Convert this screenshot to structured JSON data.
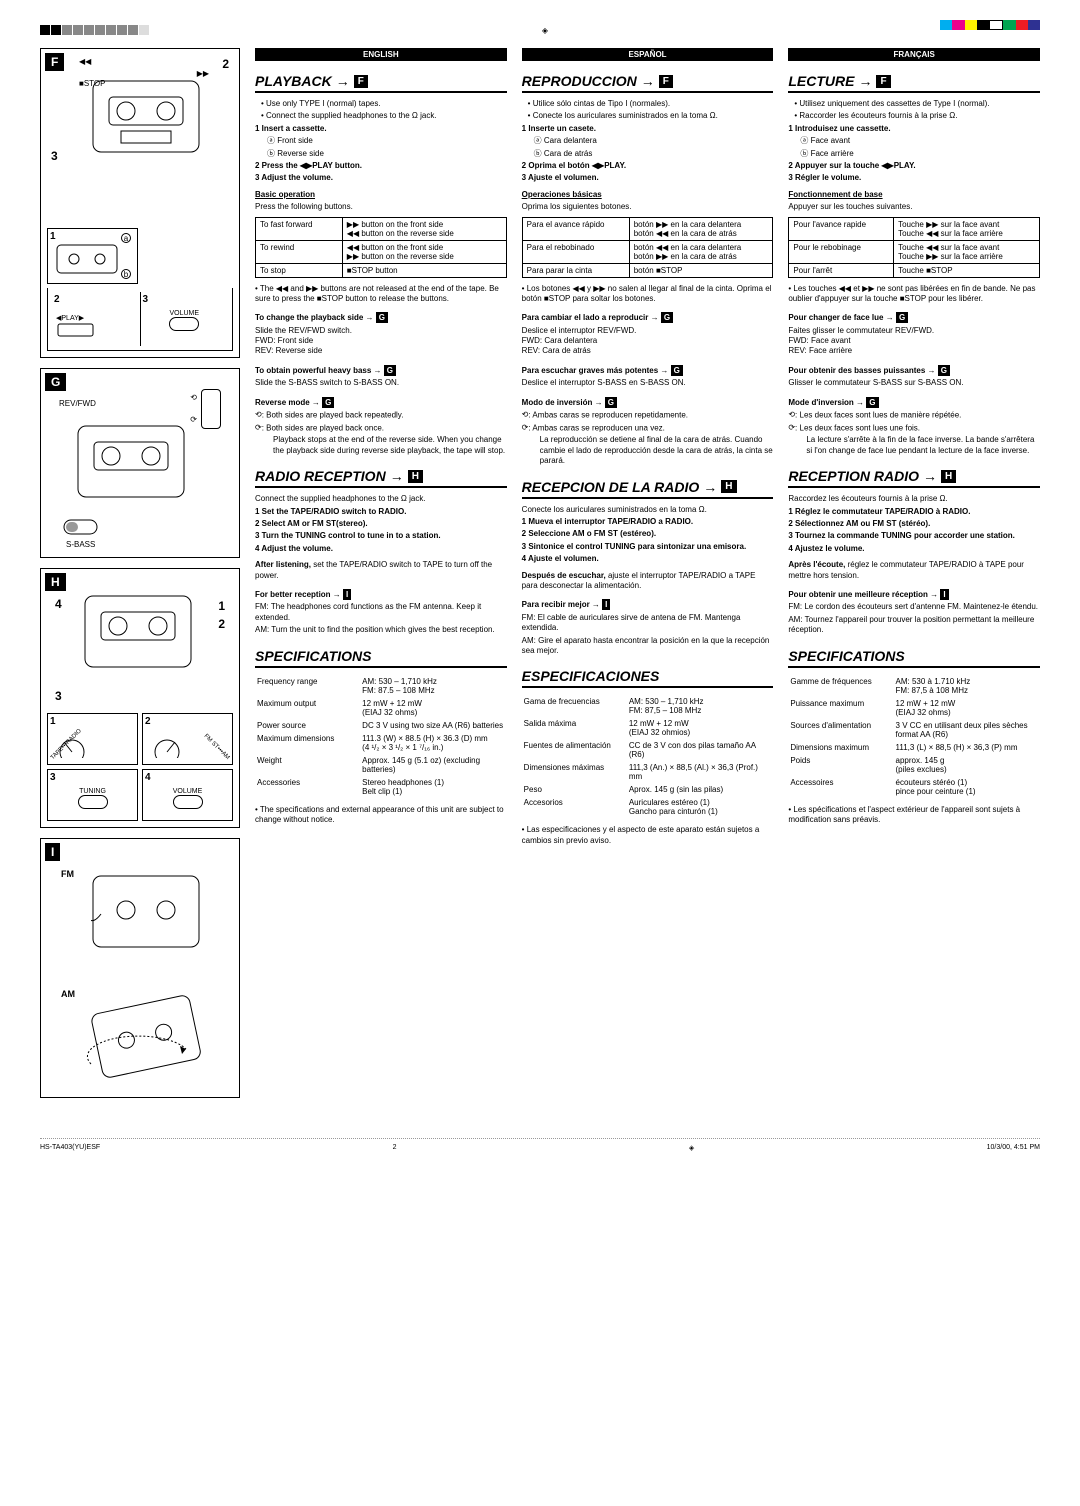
{
  "colorbar": [
    "#00aeef",
    "#ec008c",
    "#fff200",
    "#000000",
    "#ffffff",
    "#00a651",
    "#ed1c24",
    "#2e3192"
  ],
  "langs": {
    "en": "ENGLISH",
    "es": "ESPAÑOL",
    "fr": "FRANÇAIS"
  },
  "en": {
    "playback_title": "PLAYBACK",
    "playback_bullets": [
      "Use only TYPE I (normal) tapes.",
      "Connect the supplied headphones to the Ω jack."
    ],
    "playback_steps": [
      "1 Insert a cassette.",
      "ⓐ Front side",
      "ⓑ Reverse side",
      "2 Press the ◀▶PLAY button.",
      "3 Adjust the volume."
    ],
    "basic_op": "Basic operation",
    "basic_op_sub": "Press the following buttons.",
    "ops": [
      [
        "To fast forward",
        "▶▶ button on the front side\n◀◀ button on the reverse side"
      ],
      [
        "To rewind",
        "◀◀ button on the front side\n▶▶ button on the reverse side"
      ],
      [
        "To stop",
        "■STOP button"
      ]
    ],
    "playback_note": "The ◀◀ and ▶▶ buttons are not released at the end of the tape. Be sure to press the ■STOP button to release the buttons.",
    "change_side": "To change the playback side →",
    "change_side_text": "Slide the REV/FWD switch.\nFWD: Front side\nREV: Reverse side",
    "heavy_bass": "To obtain powerful heavy bass →",
    "heavy_bass_text": "Slide the S-BASS switch to S-BASS ON.",
    "reverse_mode": "Reverse mode →",
    "reverse_item1": "Both sides are played back repeatedly.",
    "reverse_item2": "Both sides are played back once.\nPlayback stops at the end of the reverse side. When you change the playback side during reverse side playback, the tape will stop.",
    "radio_title": "RADIO RECEPTION",
    "radio_intro": "Connect the supplied headphones to the Ω jack.",
    "radio_steps": [
      "1 Set the TAPE/RADIO switch to RADIO.",
      "2 Select AM or FM ST(stereo).",
      "3 Turn the TUNING control to tune in to a station.",
      "4 Adjust the volume."
    ],
    "radio_after": "After listening, set the TAPE/RADIO switch to TAPE to turn off the power.",
    "better_recep": "For better reception →",
    "better_recep_fm": "FM: The headphones cord functions as the FM antenna. Keep it extended.",
    "better_recep_am": "AM: Turn the unit to find the position which gives the best reception.",
    "specs_title": "SPECIFICATIONS",
    "specs": [
      [
        "Frequency range",
        "AM: 530 – 1,710 kHz\nFM: 87.5 – 108 MHz"
      ],
      [
        "Maximum output",
        "12 mW + 12 mW\n(EIAJ 32 ohms)"
      ],
      [
        "Power source",
        "DC 3 V using two size AA (R6) batteries"
      ],
      [
        "Maximum dimensions",
        "111.3 (W) × 88.5 (H) × 36.3 (D) mm\n(4 ¹/₂ × 3 ¹/₂ × 1 ⁷/₁₆ in.)"
      ],
      [
        "Weight",
        "Approx. 145 g (5.1 oz) (excluding batteries)"
      ],
      [
        "Accessories",
        "Stereo headphones (1)\nBelt clip (1)"
      ]
    ],
    "specs_note": "The specifications and external appearance of this unit are subject to change without notice."
  },
  "es": {
    "playback_title": "REPRODUCCION",
    "playback_bullets": [
      "Utilice sólo cintas de Tipo I (normales).",
      "Conecte los auriculares suministrados en la toma Ω."
    ],
    "playback_steps": [
      "1 Inserte un casete.",
      "ⓐ Cara delantera",
      "ⓑ Cara de atrás",
      "2 Oprima el botón ◀▶PLAY.",
      "3 Ajuste el volumen."
    ],
    "basic_op": "Operaciones básicas",
    "basic_op_sub": "Oprima los siguientes botones.",
    "ops": [
      [
        "Para el avance rápido",
        "botón ▶▶ en la cara delantera\nbotón ◀◀ en la cara de atrás"
      ],
      [
        "Para el rebobinado",
        "botón ◀◀ en la cara delantera\nbotón ▶▶ en la cara de atrás"
      ],
      [
        "Para parar la cinta",
        "botón ■STOP"
      ]
    ],
    "playback_note": "Los botones ◀◀ y ▶▶ no salen al llegar al final de la cinta. Oprima el botón ■STOP para soltar los botones.",
    "change_side": "Para cambiar el lado a reproducir →",
    "change_side_text": "Deslice el interruptor REV/FWD.\nFWD: Cara delantera\nREV: Cara de atrás",
    "heavy_bass": "Para escuchar graves más potentes →",
    "heavy_bass_text": "Deslice el interruptor S-BASS en S-BASS ON.",
    "reverse_mode": "Modo de inversión →",
    "reverse_item1": "Ambas caras se reproducen repetidamente.",
    "reverse_item2": "Ambas caras se reproducen una vez.\nLa reproducción se detiene al final de la cara de atrás. Cuando cambie el lado de reproducción desde la cara de atrás, la cinta se parará.",
    "radio_title": "RECEPCION DE LA RADIO",
    "radio_intro": "Conecte los auriculares suministrados en la toma Ω.",
    "radio_steps": [
      "1 Mueva el interruptor TAPE/RADIO a RADIO.",
      "2 Seleccione AM o FM ST (estéreo).",
      "3 Sintonice el control TUNING para sintonizar una emisora.",
      "4 Ajuste el volumen."
    ],
    "radio_after": "Después de escuchar, ajuste el interruptor TAPE/RADIO a TAPE para desconectar la alimentación.",
    "better_recep": "Para recibir mejor →",
    "better_recep_fm": "FM: El cable de auriculares sirve de antena de FM. Mantenga extendida.",
    "better_recep_am": "AM: Gire el aparato hasta encontrar la posición en la que la recepción sea mejor.",
    "specs_title": "ESPECIFICACIONES",
    "specs": [
      [
        "Gama de frecuencias",
        "AM: 530 – 1,710 kHz\nFM: 87,5 – 108 MHz"
      ],
      [
        "Salida máxima",
        "12 mW + 12 mW\n(EIAJ 32 ohmios)"
      ],
      [
        "Fuentes de alimentación",
        "CC de 3 V con dos pilas tamaño AA (R6)"
      ],
      [
        "Dimensiones máximas",
        "111,3 (An.) × 88,5 (Al.) × 36,3 (Prof.) mm"
      ],
      [
        "Peso",
        "Aprox. 145 g (sin las pilas)"
      ],
      [
        "Accesorios",
        "Auriculares estéreo (1)\nGancho para cinturón (1)"
      ]
    ],
    "specs_note": "Las especificaciones y el aspecto de este aparato están sujetos a cambios sin previo aviso."
  },
  "fr": {
    "playback_title": "LECTURE",
    "playback_bullets": [
      "Utilisez uniquement des cassettes de Type I (normal).",
      "Raccorder les écouteurs fournis à la prise Ω."
    ],
    "playback_steps": [
      "1 Introduisez une cassette.",
      "ⓐ Face avant",
      "ⓑ Face arrière",
      "2 Appuyer sur la touche ◀▶PLAY.",
      "3 Régler le volume."
    ],
    "basic_op": "Fonctionnement de base",
    "basic_op_sub": "Appuyer sur les touches suivantes.",
    "ops": [
      [
        "Pour l'avance rapide",
        "Touche ▶▶ sur la face avant\nTouche ◀◀ sur la face arrière"
      ],
      [
        "Pour le rebobinage",
        "Touche ◀◀ sur la face avant\nTouche ▶▶ sur la face arrière"
      ],
      [
        "Pour l'arrêt",
        "Touche ■STOP"
      ]
    ],
    "playback_note": "Les touches ◀◀ et ▶▶ ne sont pas libérées en fin de bande. Ne pas oublier d'appuyer sur la touche ■STOP pour les libérer.",
    "change_side": "Pour changer de face lue →",
    "change_side_text": "Faites glisser le commutateur REV/FWD.\nFWD: Face avant\nREV: Face arrière",
    "heavy_bass": "Pour obtenir des basses puissantes →",
    "heavy_bass_text": "Glisser le commutateur S-BASS sur S-BASS ON.",
    "reverse_mode": "Mode d'inversion →",
    "reverse_item1": "Les deux faces sont lues de manière répétée.",
    "reverse_item2": "Les deux faces sont lues une fois.\nLa lecture s'arrête à la fin de la face inverse. La bande s'arrêtera si l'on change de face lue pendant la lecture de la face inverse.",
    "radio_title": "RECEPTION RADIO",
    "radio_intro": "Raccordez les écouteurs fournis à la prise Ω.",
    "radio_steps": [
      "1 Réglez le commutateur TAPE/RADIO à RADIO.",
      "2 Sélectionnez AM ou FM ST (stéréo).",
      "3 Tournez la commande TUNING pour accorder une station.",
      "4 Ajustez le volume."
    ],
    "radio_after": "Après l'écoute, réglez le commutateur TAPE/RADIO à TAPE pour mettre hors tension.",
    "better_recep": "Pour obtenir une meilleure réception →",
    "better_recep_fm": "FM: Le cordon des écouteurs sert d'antenne FM. Maintenez-le étendu.",
    "better_recep_am": "AM: Tournez l'appareil pour trouver la position permettant la meilleure réception.",
    "specs_title": "SPECIFICATIONS",
    "specs": [
      [
        "Gamme de fréquences",
        "AM: 530 à 1.710 kHz\nFM: 87,5 à 108 MHz"
      ],
      [
        "Puissance maximum",
        "12 mW + 12 mW\n(EIAJ 32 ohms)"
      ],
      [
        "Sources d'alimentation",
        "3 V CC en utilisant deux piles sèches format AA (R6)"
      ],
      [
        "Dimensions maximum",
        "111,3 (L) × 88,5 (H) × 36,3 (P) mm"
      ],
      [
        "Poids",
        "approx. 145 g\n(piles exclues)"
      ],
      [
        "Accessoires",
        "écouteurs stéréo (1)\npince pour ceinture (1)"
      ]
    ],
    "specs_note": "Les spécifications et l'aspect extérieur de l'appareil sont sujets à modification sans préavis."
  },
  "diagrams": {
    "f_labels": {
      "stop": "■STOP",
      "play": "PLAY",
      "volume": "VOLUME"
    },
    "g_labels": {
      "revfwd": "REV/FWD",
      "sbass": "S-BASS"
    },
    "h_labels": {
      "tape_radio": "TAPE•••RADIO",
      "fmst_am": "FM ST•••AM",
      "tuning": "TUNING",
      "volume": "VOLUME"
    },
    "i_labels": {
      "fm": "FM",
      "am": "AM"
    }
  },
  "footer": {
    "left": "HS-TA403(YU)ESF",
    "page": "2",
    "right": "10/3/00, 4:51 PM"
  }
}
